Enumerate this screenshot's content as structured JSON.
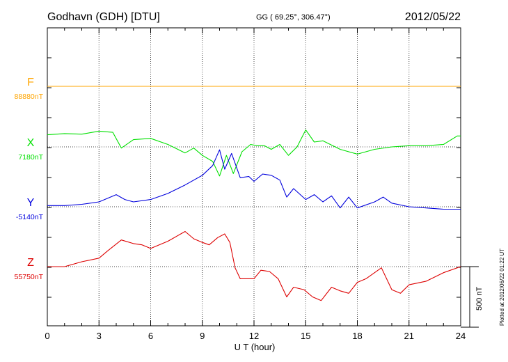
{
  "header": {
    "station": "Godhavn (GDH)  [DTU]",
    "coords": "GG ( 69.25°, 306.47°)",
    "date": "2012/05/22"
  },
  "plotted_note": "Plotted at 2012/06/22 01:22 UT",
  "scale_label": "500 nT",
  "chart_data": {
    "type": "line",
    "xlabel": "U T (hour)",
    "x_ticks": [
      "0",
      "3",
      "6",
      "9",
      "12",
      "15",
      "18",
      "21",
      "24"
    ],
    "xlim": [
      0,
      24
    ],
    "grid": true,
    "legend": "none",
    "series": [
      {
        "name": "F",
        "baseline_label": "88880nT",
        "baseline": 88880,
        "color": "#ffa500",
        "x": [
          0,
          24
        ],
        "y": [
          88880,
          88880
        ]
      },
      {
        "name": "X",
        "baseline_label": "7180nT",
        "baseline": 7180,
        "color": "#00e000",
        "x": [
          0,
          1,
          2,
          3,
          3.8,
          4.3,
          5,
          6,
          7,
          8,
          8.5,
          9,
          9.6,
          10,
          10.4,
          10.8,
          11.3,
          11.8,
          12.2,
          12.6,
          13,
          13.5,
          14,
          14.5,
          15,
          15.5,
          16,
          17,
          18,
          19,
          20,
          21,
          22,
          23,
          23.8,
          24
        ],
        "y": [
          7280,
          7290,
          7285,
          7310,
          7300,
          7170,
          7240,
          7250,
          7200,
          7130,
          7170,
          7110,
          7060,
          6940,
          7110,
          6960,
          7140,
          7200,
          7190,
          7190,
          7160,
          7200,
          7110,
          7180,
          7320,
          7220,
          7230,
          7160,
          7120,
          7160,
          7180,
          7190,
          7190,
          7200,
          7270,
          7270
        ]
      },
      {
        "name": "Y",
        "baseline_label": "-5140nT",
        "baseline": -5140,
        "color": "#0000dd",
        "x": [
          0,
          1,
          2,
          3,
          4,
          4.5,
          5,
          6,
          7,
          8,
          9,
          9.6,
          10,
          10.3,
          10.7,
          11.2,
          11.7,
          12,
          12.5,
          13,
          13.5,
          13.9,
          14.3,
          15,
          15.5,
          16,
          16.5,
          17,
          17.5,
          18,
          19,
          19.5,
          20,
          21,
          22,
          23,
          24
        ],
        "y": [
          -5130,
          -5130,
          -5120,
          -5100,
          -5040,
          -5080,
          -5100,
          -5080,
          -5030,
          -4960,
          -4880,
          -4800,
          -4670,
          -4830,
          -4700,
          -4900,
          -4890,
          -4930,
          -4870,
          -4880,
          -4920,
          -5060,
          -4990,
          -5080,
          -5040,
          -5100,
          -5050,
          -5150,
          -5060,
          -5150,
          -5100,
          -5060,
          -5110,
          -5140,
          -5150,
          -5160,
          -5160
        ]
      },
      {
        "name": "Z",
        "baseline_label": "55750nT",
        "baseline": 55750,
        "color": "#dd0000",
        "x": [
          0,
          1,
          2,
          3,
          3.5,
          4.3,
          5,
          5.5,
          6,
          7,
          8,
          8.5,
          9,
          9.4,
          9.9,
          10.3,
          10.6,
          10.9,
          11.2,
          11.5,
          12,
          12.4,
          12.9,
          13.4,
          13.9,
          14.3,
          14.9,
          15.4,
          15.9,
          16.5,
          17,
          17.5,
          18,
          18.5,
          19.4,
          20,
          20.5,
          21,
          22,
          23,
          24
        ],
        "y": [
          55750,
          55750,
          55790,
          55820,
          55880,
          55970,
          55940,
          55930,
          55900,
          55960,
          56040,
          55980,
          55950,
          55930,
          55990,
          56020,
          55950,
          55740,
          55650,
          55650,
          55650,
          55720,
          55710,
          55650,
          55500,
          55580,
          55560,
          55500,
          55470,
          55580,
          55550,
          55530,
          55620,
          55650,
          55740,
          55560,
          55530,
          55600,
          55630,
          55700,
          55750
        ]
      }
    ]
  }
}
